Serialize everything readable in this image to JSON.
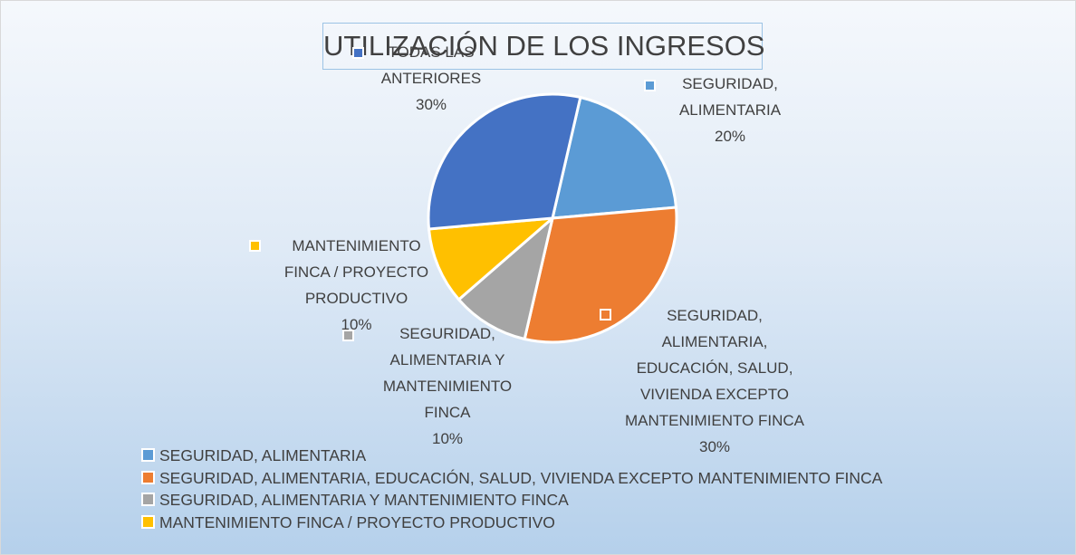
{
  "chart_data": {
    "type": "pie",
    "title": "UTILIZACIÓN DE LOS INGRESOS",
    "categories": [
      "SEGURIDAD, ALIMENTARIA",
      "SEGURIDAD, ALIMENTARIA, EDUCACIÓN, SALUD, VIVIENDA EXCEPTO MANTENIMIENTO FINCA",
      "SEGURIDAD, ALIMENTARIA Y MANTENIMIENTO FINCA",
      "MANTENIMIENTO FINCA / PROYECTO PRODUCTIVO",
      "TODAS LAS ANTERIORES"
    ],
    "values": [
      20,
      30,
      10,
      10,
      30
    ],
    "value_labels": [
      "20%",
      "30%",
      "10%",
      "10%",
      "30%"
    ],
    "colors": [
      "#5b9bd5",
      "#ed7d31",
      "#a5a5a5",
      "#ffc000",
      "#4472c4"
    ],
    "legend": "bottom-left"
  }
}
